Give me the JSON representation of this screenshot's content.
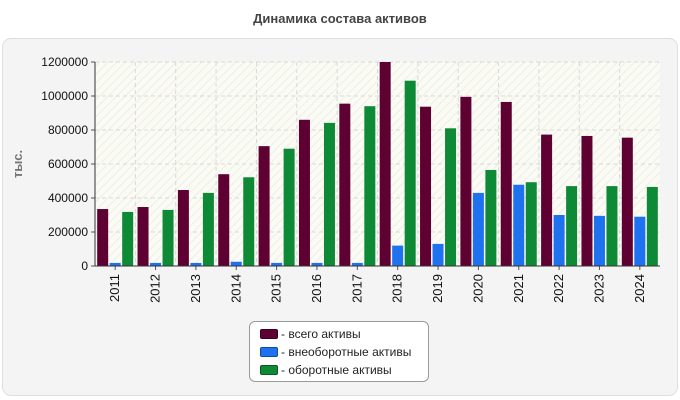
{
  "chart_data": {
    "type": "bar",
    "title": "Динамика состава активов",
    "xlabel": "",
    "ylabel": "тыс.",
    "ylim": [
      0,
      1200000
    ],
    "yticks": [
      0,
      200000,
      400000,
      600000,
      800000,
      1000000,
      1200000
    ],
    "grid": true,
    "legend_position": "bottom-center",
    "categories": [
      "2011",
      "2012",
      "2013",
      "2014",
      "2015",
      "2016",
      "2017",
      "2018",
      "2019",
      "2020",
      "2021",
      "2022",
      "2023",
      "2024"
    ],
    "series": [
      {
        "name": "всего активы",
        "color": "#5e0032",
        "values": [
          335000,
          347000,
          447000,
          540000,
          705000,
          860000,
          955000,
          1200000,
          937000,
          995000,
          965000,
          773000,
          765000,
          755000
        ]
      },
      {
        "name": "внеоборотные активы",
        "color": "#1e72f0",
        "values": [
          18000,
          18000,
          18000,
          25000,
          18000,
          18000,
          18000,
          120000,
          130000,
          430000,
          478000,
          300000,
          295000,
          290000
        ]
      },
      {
        "name": "оборотные активы",
        "color": "#0e8a36",
        "values": [
          318000,
          330000,
          430000,
          522000,
          690000,
          842000,
          940000,
          1090000,
          810000,
          565000,
          493000,
          470000,
          470000,
          465000
        ]
      }
    ]
  }
}
